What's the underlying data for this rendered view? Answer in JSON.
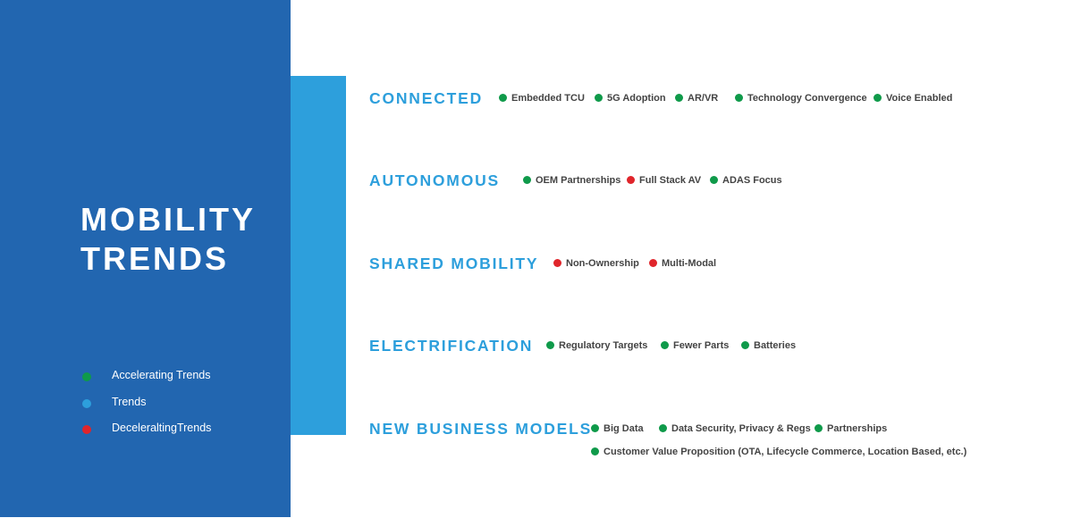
{
  "colors": {
    "accelerating": "#0f9a4a",
    "trend": "#2d9fdc",
    "decelerating": "#e0252b",
    "panel": "#2266b0",
    "heading": "#2d9fdc"
  },
  "title": {
    "line1": "MOBILITY",
    "line2": "TRENDS"
  },
  "legend": [
    {
      "label": "Accelerating Trends",
      "status": "accelerating"
    },
    {
      "label": "Trends",
      "status": "trend"
    },
    {
      "label": "DeceleraltingTrends",
      "status": "decelerating"
    }
  ],
  "categories": [
    {
      "name": "CONNECTED",
      "tags": [
        {
          "label": "Embedded TCU",
          "status": "accelerating"
        },
        {
          "label": "5G Adoption",
          "status": "accelerating"
        },
        {
          "label": "AR/VR",
          "status": "accelerating"
        },
        {
          "label": "Technology Convergence",
          "status": "accelerating"
        },
        {
          "label": "Voice Enabled",
          "status": "accelerating"
        }
      ]
    },
    {
      "name": "AUTONOMOUS",
      "tags": [
        {
          "label": "OEM Partnerships",
          "status": "accelerating"
        },
        {
          "label": "Full Stack AV",
          "status": "decelerating"
        },
        {
          "label": "ADAS Focus",
          "status": "accelerating"
        }
      ]
    },
    {
      "name": "SHARED MOBILITY",
      "tags": [
        {
          "label": "Non-Ownership",
          "status": "decelerating"
        },
        {
          "label": "Multi-Modal",
          "status": "decelerating"
        }
      ]
    },
    {
      "name": "ELECTRIFICATION",
      "tags": [
        {
          "label": "Regulatory  Targets",
          "status": "accelerating"
        },
        {
          "label": "Fewer Parts",
          "status": "accelerating"
        },
        {
          "label": "Batteries",
          "status": "accelerating"
        }
      ]
    },
    {
      "name": "NEW BUSINESS MODELS",
      "tags": [
        {
          "label": "Big Data",
          "status": "accelerating"
        },
        {
          "label": "Data Security, Privacy & Regs",
          "status": "accelerating"
        },
        {
          "label": "Partnerships",
          "status": "accelerating"
        },
        {
          "label": "Customer Value Proposition (OTA, Lifecycle Commerce, Location Based, etc.)",
          "status": "accelerating"
        }
      ]
    }
  ]
}
